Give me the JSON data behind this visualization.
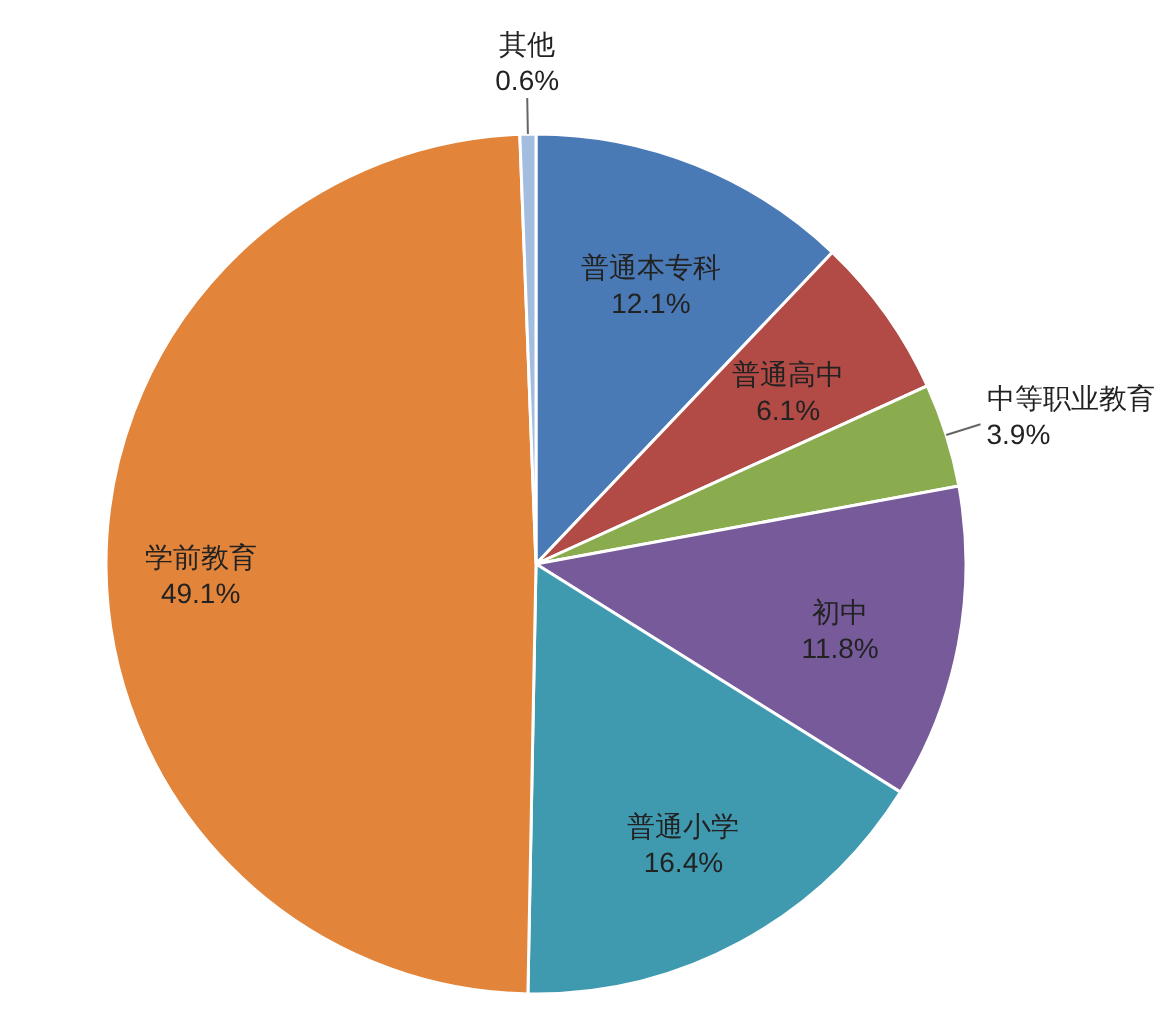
{
  "chart_data": {
    "type": "pie",
    "categories": [
      "普通本专科",
      "普通高中",
      "中等职业教育",
      "初中",
      "普通小学",
      "学前教育",
      "其他"
    ],
    "values": [
      12.1,
      6.1,
      3.9,
      11.8,
      16.4,
      49.1,
      0.6
    ],
    "colors": [
      "#4a7ab5",
      "#b24a45",
      "#8bab4f",
      "#765a9a",
      "#3f9ab0",
      "#e2843a",
      "#a3bde0"
    ],
    "value_labels": [
      "12.1%",
      "6.1%",
      "3.9%",
      "11.8%",
      "16.4%",
      "49.1%",
      "0.6%"
    ],
    "legend": false
  }
}
